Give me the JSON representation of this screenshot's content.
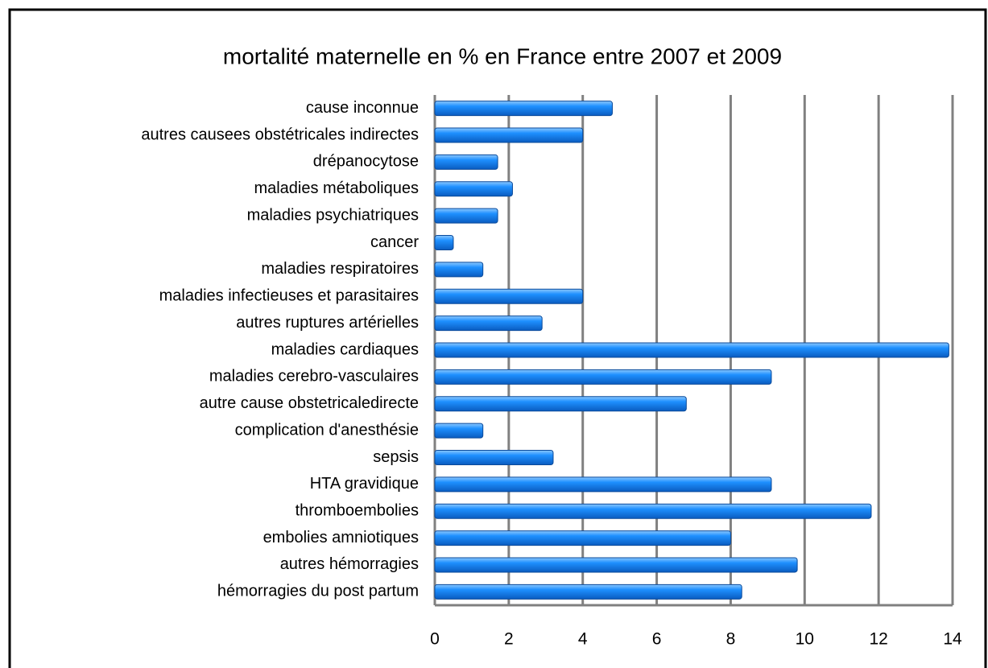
{
  "chart_data": {
    "type": "barh",
    "title": "mortalité maternelle en % en France entre 2007 et 2009",
    "categories": [
      "cause inconnue",
      "autres causees obstétricales indirectes",
      "drépanocytose",
      "maladies métaboliques",
      "maladies psychiatriques",
      "cancer",
      "maladies respiratoires",
      "maladies infectieuses et parasitaires",
      "autres ruptures artérielles",
      "maladies cardiaques",
      "maladies cerebro-vasculaires",
      "autre cause obstetricaledirecte",
      "complication d'anesthésie",
      "sepsis",
      "HTA gravidique",
      "thromboembolies",
      "embolies amniotiques",
      "autres hémorragies",
      "hémorragies du post partum"
    ],
    "values": [
      4.8,
      4.0,
      1.7,
      2.1,
      1.7,
      0.5,
      1.3,
      4.0,
      2.9,
      13.9,
      9.1,
      6.8,
      1.3,
      3.2,
      9.1,
      11.8,
      8.0,
      9.8,
      8.3
    ],
    "color": "#1e90ff",
    "xlim": [
      0,
      14
    ],
    "xticks": [
      0,
      2,
      4,
      6,
      8,
      10,
      12,
      14
    ],
    "grid": true
  }
}
